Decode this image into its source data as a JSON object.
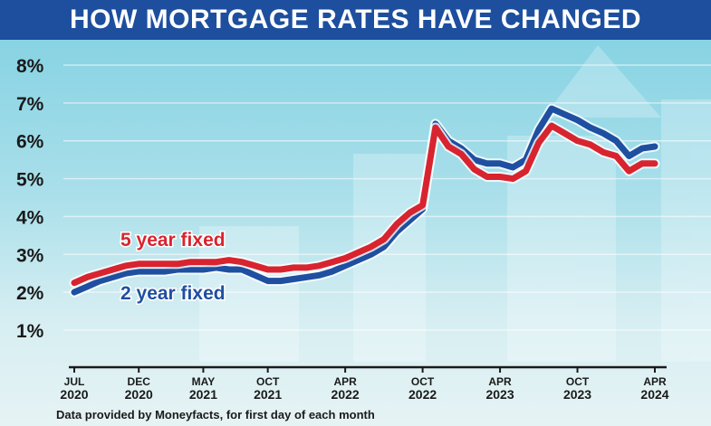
{
  "chart_data": {
    "type": "line",
    "title": "HOW MORTGAGE RATES HAVE CHANGED",
    "source": "Data provided by Moneyfacts, for first day of each month",
    "xlabel": "",
    "ylabel": "",
    "ylim": [
      0,
      8
    ],
    "yticks": [
      "1%",
      "2%",
      "3%",
      "4%",
      "5%",
      "6%",
      "7%",
      "8%"
    ],
    "xticks": [
      {
        "month": 0,
        "line1": "JUL",
        "line2": "2020"
      },
      {
        "month": 5,
        "line1": "DEC",
        "line2": "2020"
      },
      {
        "month": 10,
        "line1": "MAY",
        "line2": "2021"
      },
      {
        "month": 15,
        "line1": "OCT",
        "line2": "2021"
      },
      {
        "month": 21,
        "line1": "APR",
        "line2": "2022"
      },
      {
        "month": 27,
        "line1": "OCT",
        "line2": "2022"
      },
      {
        "month": 33,
        "line1": "APR",
        "line2": "2023"
      },
      {
        "month": 39,
        "line1": "OCT",
        "line2": "2023"
      },
      {
        "month": 45,
        "line1": "APR",
        "line2": "2024"
      }
    ],
    "x_months_from_jul_2020": [
      0,
      1,
      2,
      3,
      4,
      5,
      6,
      7,
      8,
      9,
      10,
      11,
      12,
      13,
      14,
      15,
      16,
      17,
      18,
      19,
      20,
      21,
      22,
      23,
      24,
      25,
      26,
      27,
      28,
      29,
      30,
      31,
      32,
      33,
      34,
      35,
      36,
      37,
      38,
      39,
      40,
      41,
      42,
      43,
      44,
      45
    ],
    "series": [
      {
        "name": "2 year fixed",
        "color": "#1f4fa0",
        "values": [
          2.0,
          2.15,
          2.3,
          2.4,
          2.5,
          2.55,
          2.55,
          2.55,
          2.6,
          2.6,
          2.6,
          2.65,
          2.6,
          2.6,
          2.45,
          2.3,
          2.3,
          2.35,
          2.4,
          2.45,
          2.55,
          2.7,
          2.85,
          3.0,
          3.2,
          3.6,
          3.9,
          4.2,
          6.45,
          6.0,
          5.8,
          5.5,
          5.4,
          5.4,
          5.3,
          5.5,
          6.3,
          6.85,
          6.7,
          6.55,
          6.35,
          6.2,
          6.0,
          5.6,
          5.8,
          5.85
        ]
      },
      {
        "name": "5 year fixed",
        "color": "#d8242f",
        "values": [
          2.25,
          2.4,
          2.5,
          2.6,
          2.7,
          2.75,
          2.75,
          2.75,
          2.75,
          2.8,
          2.8,
          2.8,
          2.85,
          2.8,
          2.7,
          2.6,
          2.6,
          2.65,
          2.65,
          2.7,
          2.8,
          2.9,
          3.05,
          3.2,
          3.4,
          3.8,
          4.1,
          4.3,
          6.35,
          5.85,
          5.65,
          5.25,
          5.05,
          5.05,
          5.0,
          5.2,
          5.95,
          6.4,
          6.2,
          6.0,
          5.9,
          5.7,
          5.6,
          5.2,
          5.4,
          5.4
        ]
      }
    ],
    "legend": "inline-left",
    "grid": true
  }
}
